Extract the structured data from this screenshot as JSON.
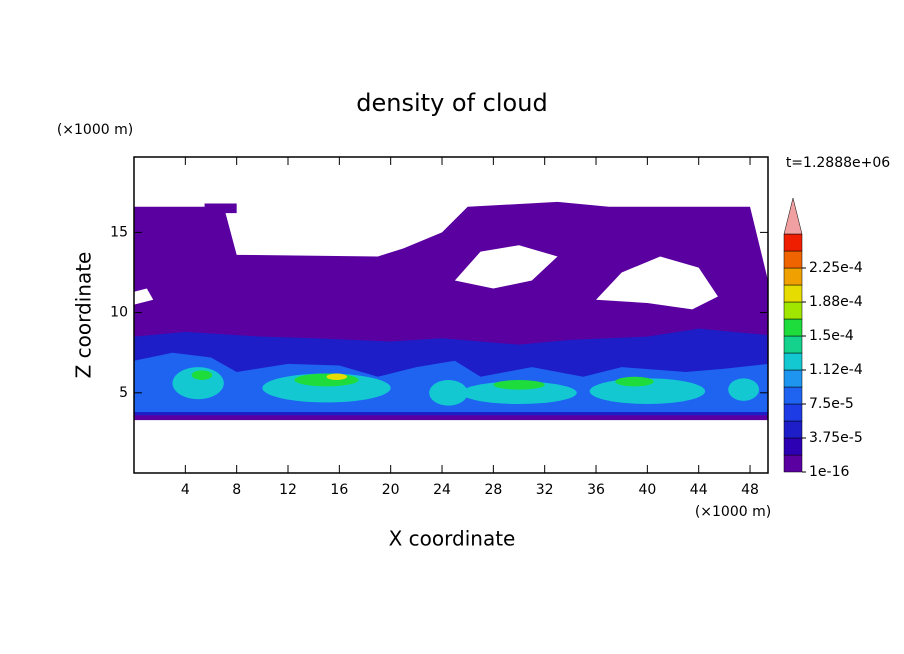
{
  "chart_data": {
    "type": "contour",
    "title": "density of cloud",
    "x_label": "X coordinate",
    "y_label": "Z coordinate",
    "x_unit": "(×1000 m)",
    "y_unit": "(×1000 m)",
    "time_label": "t=1.2888e+06",
    "xlim": [
      0,
      49.4
    ],
    "ylim": [
      0,
      19.7
    ],
    "xticks": [
      4,
      8,
      12,
      16,
      20,
      24,
      28,
      32,
      36,
      40,
      44,
      48
    ],
    "yticks": [
      5,
      10,
      15
    ],
    "levels": [
      {
        "value": 1e-16,
        "label": "1e-16"
      },
      {
        "value": 3.75e-05,
        "label": "3.75e-5"
      },
      {
        "value": 7.5e-05,
        "label": "7.5e-5"
      },
      {
        "value": 0.000112,
        "label": "1.12e-4"
      },
      {
        "value": 0.00015,
        "label": "1.5e-4"
      },
      {
        "value": 0.000188,
        "label": "1.88e-4"
      },
      {
        "value": 0.000225,
        "label": "2.25e-4"
      }
    ],
    "colors": [
      "#5a00a0",
      "#2d00b4",
      "#1e1ec8",
      "#1e3ce6",
      "#1e64f0",
      "#1e96f0",
      "#14c8d2",
      "#14d28c",
      "#1edc3c",
      "#a0e600",
      "#e6dc00",
      "#f0a000",
      "#f06400",
      "#f01e00"
    ],
    "extend_color": "#f0a0a0"
  }
}
